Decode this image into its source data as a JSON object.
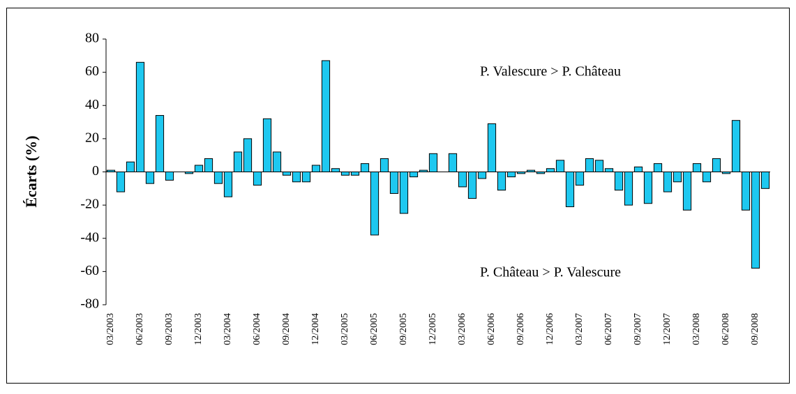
{
  "chart_data": {
    "type": "bar",
    "y_label": "Écarts (%)",
    "annotations": [
      "P. Valescure > P. Château",
      "P. Château > P. Valescure"
    ],
    "color": "#1ec8f0",
    "ylim": [
      -80,
      80
    ],
    "yticks": [
      -80,
      -60,
      -40,
      -20,
      0,
      20,
      40,
      60,
      80
    ],
    "categories": [
      "03/2003",
      null,
      null,
      "06/2003",
      null,
      null,
      "09/2003",
      null,
      null,
      "12/2003",
      null,
      null,
      "03/2004",
      null,
      null,
      "06/2004",
      null,
      null,
      "09/2004",
      null,
      null,
      "12/2004",
      null,
      null,
      "03/2005",
      null,
      null,
      "06/2005",
      null,
      null,
      "09/2005",
      null,
      null,
      "12/2005",
      null,
      null,
      "03/2006",
      null,
      null,
      "06/2006",
      null,
      null,
      "09/2006",
      null,
      null,
      "12/2006",
      null,
      null,
      "03/2007",
      null,
      null,
      "06/2007",
      null,
      null,
      "09/2007",
      null,
      null,
      "12/2007",
      null,
      null,
      "03/2008",
      null,
      null,
      "06/2008",
      null,
      null,
      "09/2008",
      null
    ],
    "values": [
      1,
      -12,
      6,
      66,
      -7,
      34,
      -5,
      null,
      -1,
      4,
      8,
      -7,
      -15,
      12,
      20,
      -8,
      32,
      12,
      -2,
      -6,
      -6,
      4,
      67,
      2,
      -2,
      -2,
      5,
      -38,
      8,
      -13,
      -25,
      -3,
      1,
      11,
      null,
      11,
      -9,
      -16,
      -4,
      29,
      -11,
      -3,
      -1,
      1,
      -1,
      2,
      7,
      -21,
      -8,
      8,
      7,
      2,
      -11,
      -20,
      3,
      -19,
      5,
      -12,
      -6,
      -23,
      5,
      -6,
      8,
      -1,
      31,
      -23,
      -58,
      -10
    ]
  }
}
